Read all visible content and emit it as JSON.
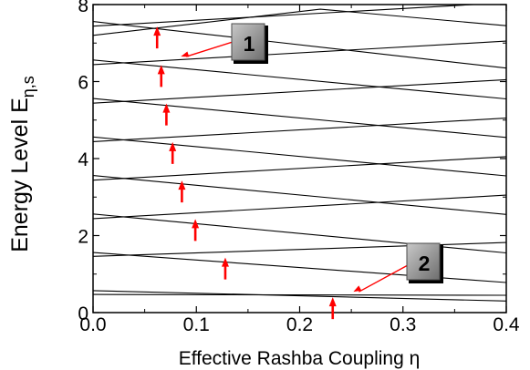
{
  "chart_data": {
    "type": "line",
    "xlabel": "Effective Rashba  Coupling η",
    "ylabel": {
      "main": "Energy Level E",
      "subscript": "η,s"
    },
    "xlim": [
      0.0,
      0.4
    ],
    "ylim": [
      0,
      8
    ],
    "x_ticks": [
      "0.0",
      "0.1",
      "0.2",
      "0.3",
      "0.4"
    ],
    "y_ticks": [
      "0",
      "2",
      "4",
      "6",
      "8"
    ],
    "grid": false,
    "colors": {
      "curve": "#000000",
      "arrow": "#ff0000",
      "box_face": "#8c8c8c"
    },
    "series": [
      {
        "x": [
          0,
          0.4
        ],
        "y": [
          0.47,
          0.45
        ]
      },
      {
        "x": [
          0,
          0.4
        ],
        "y": [
          0.57,
          0.3
        ]
      },
      {
        "x": [
          0,
          0.4
        ],
        "y": [
          1.46,
          1.82
        ]
      },
      {
        "x": [
          0,
          0.4
        ],
        "y": [
          1.56,
          0.78
        ]
      },
      {
        "x": [
          0,
          0.4
        ],
        "y": [
          2.44,
          3.05
        ]
      },
      {
        "x": [
          0,
          0.4
        ],
        "y": [
          2.56,
          1.55
        ]
      },
      {
        "x": [
          0,
          0.4
        ],
        "y": [
          3.44,
          4.05
        ]
      },
      {
        "x": [
          0,
          0.4
        ],
        "y": [
          3.56,
          2.55
        ]
      },
      {
        "x": [
          0,
          0.4
        ],
        "y": [
          4.44,
          5.05
        ]
      },
      {
        "x": [
          0,
          0.4
        ],
        "y": [
          4.56,
          3.55
        ]
      },
      {
        "x": [
          0,
          0.4
        ],
        "y": [
          5.44,
          6.05
        ]
      },
      {
        "x": [
          0,
          0.4
        ],
        "y": [
          5.56,
          4.55
        ]
      },
      {
        "x": [
          0,
          0.4
        ],
        "y": [
          6.44,
          7.05
        ]
      },
      {
        "x": [
          0,
          0.4
        ],
        "y": [
          6.56,
          5.55
        ]
      },
      {
        "x": [
          0,
          0.4
        ],
        "y": [
          7.44,
          8.05
        ]
      },
      {
        "x": [
          0,
          0.4
        ],
        "y": [
          7.56,
          6.35
        ]
      },
      {
        "x": [
          0,
          0.22,
          0.4
        ],
        "y": [
          7.2,
          7.88,
          7.45
        ]
      }
    ],
    "crossing_markers": [
      {
        "x": 0.062,
        "y": 7.5
      },
      {
        "x": 0.066,
        "y": 6.5
      },
      {
        "x": 0.071,
        "y": 5.5
      },
      {
        "x": 0.077,
        "y": 4.5
      },
      {
        "x": 0.086,
        "y": 3.5
      },
      {
        "x": 0.099,
        "y": 2.5
      },
      {
        "x": 0.128,
        "y": 1.5
      },
      {
        "x": 0.232,
        "y": 0.47
      }
    ],
    "annotations": [
      {
        "label": "1",
        "target": {
          "x": 0.085,
          "y": 6.65
        }
      },
      {
        "label": "2",
        "target": {
          "x": 0.252,
          "y": 0.54
        }
      }
    ]
  }
}
